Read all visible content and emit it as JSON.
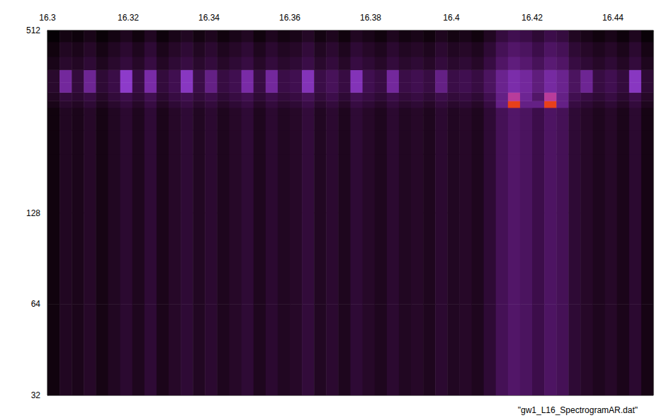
{
  "chart_data": {
    "type": "heatmap",
    "log": "y",
    "grid": false,
    "annotations": [
      "\"gw1_L16_SpectrogramAR.dat\""
    ],
    "xlim": [
      16.3,
      16.45
    ],
    "xticks": [
      16.3,
      16.32,
      16.34,
      16.36,
      16.38,
      16.4,
      16.42,
      16.44
    ],
    "ylim": [
      32,
      512
    ],
    "yticks": [
      32,
      64,
      128,
      512
    ],
    "zlim": [
      0,
      1
    ],
    "x_edges": [
      16.3,
      16.303,
      16.306,
      16.309,
      16.312,
      16.315,
      16.318,
      16.321,
      16.324,
      16.327,
      16.33,
      16.333,
      16.336,
      16.339,
      16.342,
      16.345,
      16.348,
      16.351,
      16.354,
      16.357,
      16.36,
      16.363,
      16.366,
      16.369,
      16.372,
      16.375,
      16.378,
      16.381,
      16.384,
      16.387,
      16.39,
      16.393,
      16.396,
      16.399,
      16.402,
      16.405,
      16.408,
      16.411,
      16.414,
      16.417,
      16.42,
      16.423,
      16.426,
      16.429,
      16.432,
      16.435,
      16.438,
      16.441,
      16.444,
      16.447,
      16.45
    ],
    "y_edges": [
      32,
      64,
      128,
      200,
      240,
      270,
      285,
      300,
      320,
      345,
      380,
      420,
      470,
      512
    ],
    "z": [
      [
        0.12,
        0.22,
        0.18,
        0.25,
        0.15,
        0.22,
        0.28,
        0.2,
        0.3,
        0.18,
        0.25,
        0.3,
        0.22,
        0.28,
        0.2,
        0.25,
        0.3,
        0.2,
        0.28,
        0.22,
        0.25,
        0.32,
        0.22,
        0.28,
        0.2,
        0.3,
        0.25,
        0.2,
        0.28,
        0.22,
        0.25,
        0.2,
        0.28,
        0.22,
        0.25,
        0.2,
        0.3,
        0.42,
        0.48,
        0.45,
        0.38,
        0.46,
        0.42,
        0.3,
        0.25,
        0.2,
        0.25,
        0.18,
        0.28,
        0.15
      ],
      [
        0.12,
        0.22,
        0.18,
        0.25,
        0.15,
        0.22,
        0.28,
        0.2,
        0.3,
        0.18,
        0.25,
        0.3,
        0.22,
        0.28,
        0.2,
        0.25,
        0.3,
        0.2,
        0.28,
        0.22,
        0.25,
        0.32,
        0.22,
        0.28,
        0.2,
        0.3,
        0.25,
        0.2,
        0.28,
        0.22,
        0.25,
        0.2,
        0.28,
        0.22,
        0.25,
        0.2,
        0.3,
        0.42,
        0.48,
        0.45,
        0.38,
        0.46,
        0.42,
        0.3,
        0.25,
        0.2,
        0.25,
        0.18,
        0.28,
        0.15
      ],
      [
        0.12,
        0.22,
        0.18,
        0.25,
        0.15,
        0.22,
        0.28,
        0.2,
        0.3,
        0.18,
        0.25,
        0.3,
        0.22,
        0.28,
        0.2,
        0.25,
        0.3,
        0.2,
        0.28,
        0.22,
        0.25,
        0.32,
        0.22,
        0.28,
        0.2,
        0.3,
        0.25,
        0.2,
        0.28,
        0.22,
        0.25,
        0.2,
        0.28,
        0.22,
        0.25,
        0.2,
        0.3,
        0.42,
        0.48,
        0.45,
        0.38,
        0.46,
        0.42,
        0.3,
        0.25,
        0.2,
        0.25,
        0.18,
        0.28,
        0.15
      ],
      [
        0.12,
        0.22,
        0.18,
        0.25,
        0.15,
        0.22,
        0.28,
        0.2,
        0.3,
        0.18,
        0.25,
        0.3,
        0.22,
        0.28,
        0.2,
        0.25,
        0.3,
        0.2,
        0.28,
        0.22,
        0.25,
        0.32,
        0.22,
        0.28,
        0.2,
        0.3,
        0.25,
        0.2,
        0.28,
        0.22,
        0.25,
        0.2,
        0.28,
        0.22,
        0.25,
        0.2,
        0.3,
        0.42,
        0.48,
        0.45,
        0.38,
        0.46,
        0.42,
        0.3,
        0.25,
        0.2,
        0.25,
        0.18,
        0.28,
        0.15
      ],
      [
        0.12,
        0.22,
        0.18,
        0.25,
        0.15,
        0.22,
        0.28,
        0.2,
        0.3,
        0.18,
        0.25,
        0.3,
        0.22,
        0.28,
        0.2,
        0.25,
        0.3,
        0.2,
        0.28,
        0.22,
        0.25,
        0.32,
        0.22,
        0.28,
        0.2,
        0.3,
        0.25,
        0.2,
        0.28,
        0.22,
        0.25,
        0.2,
        0.28,
        0.22,
        0.25,
        0.2,
        0.3,
        0.42,
        0.48,
        0.45,
        0.38,
        0.46,
        0.42,
        0.3,
        0.25,
        0.2,
        0.25,
        0.18,
        0.28,
        0.15
      ],
      [
        0.12,
        0.22,
        0.18,
        0.25,
        0.15,
        0.22,
        0.28,
        0.2,
        0.3,
        0.18,
        0.25,
        0.3,
        0.22,
        0.28,
        0.2,
        0.25,
        0.3,
        0.2,
        0.28,
        0.22,
        0.25,
        0.32,
        0.22,
        0.28,
        0.2,
        0.3,
        0.25,
        0.2,
        0.28,
        0.22,
        0.25,
        0.2,
        0.28,
        0.22,
        0.25,
        0.2,
        0.3,
        0.42,
        0.48,
        0.45,
        0.38,
        0.46,
        0.42,
        0.3,
        0.25,
        0.2,
        0.25,
        0.18,
        0.28,
        0.15
      ],
      [
        0.17,
        0.27,
        0.23,
        0.3,
        0.2,
        0.27,
        0.33,
        0.25,
        0.35,
        0.23,
        0.3,
        0.35,
        0.27,
        0.33,
        0.25,
        0.3,
        0.35,
        0.25,
        0.33,
        0.27,
        0.3,
        0.37,
        0.27,
        0.33,
        0.25,
        0.35,
        0.3,
        0.25,
        0.33,
        0.27,
        0.3,
        0.25,
        0.33,
        0.27,
        0.3,
        0.25,
        0.35,
        0.55,
        1,
        0.55,
        0.55,
        1,
        0.55,
        0.35,
        0.3,
        0.25,
        0.3,
        0.23,
        0.33,
        0.2
      ],
      [
        0.22,
        0.32,
        0.28,
        0.35,
        0.25,
        0.32,
        0.38,
        0.3,
        0.4,
        0.28,
        0.35,
        0.4,
        0.32,
        0.38,
        0.3,
        0.35,
        0.4,
        0.3,
        0.38,
        0.32,
        0.35,
        0.42,
        0.32,
        0.38,
        0.3,
        0.4,
        0.35,
        0.3,
        0.38,
        0.32,
        0.35,
        0.3,
        0.38,
        0.32,
        0.35,
        0.3,
        0.4,
        0.55,
        0.85,
        0.58,
        0.48,
        0.85,
        0.55,
        0.4,
        0.35,
        0.3,
        0.35,
        0.28,
        0.38,
        0.25
      ],
      [
        0.27,
        0.6,
        0.33,
        0.58,
        0.3,
        0.37,
        0.7,
        0.35,
        0.62,
        0.33,
        0.4,
        0.68,
        0.37,
        0.55,
        0.35,
        0.4,
        0.62,
        0.35,
        0.6,
        0.37,
        0.4,
        0.66,
        0.37,
        0.43,
        0.35,
        0.66,
        0.4,
        0.35,
        0.6,
        0.37,
        0.4,
        0.35,
        0.55,
        0.37,
        0.4,
        0.35,
        0.45,
        0.57,
        0.63,
        0.6,
        0.53,
        0.61,
        0.57,
        0.45,
        0.58,
        0.35,
        0.4,
        0.33,
        0.68,
        0.3
      ],
      [
        0.27,
        0.6,
        0.33,
        0.58,
        0.3,
        0.37,
        0.7,
        0.35,
        0.62,
        0.33,
        0.4,
        0.68,
        0.37,
        0.55,
        0.35,
        0.4,
        0.62,
        0.35,
        0.6,
        0.37,
        0.4,
        0.66,
        0.37,
        0.43,
        0.35,
        0.66,
        0.4,
        0.35,
        0.6,
        0.37,
        0.4,
        0.35,
        0.55,
        0.37,
        0.4,
        0.35,
        0.45,
        0.57,
        0.63,
        0.6,
        0.53,
        0.61,
        0.57,
        0.45,
        0.58,
        0.35,
        0.4,
        0.33,
        0.68,
        0.3
      ],
      [
        0.17,
        0.27,
        0.23,
        0.3,
        0.2,
        0.27,
        0.33,
        0.25,
        0.35,
        0.23,
        0.3,
        0.35,
        0.27,
        0.33,
        0.25,
        0.3,
        0.35,
        0.25,
        0.33,
        0.27,
        0.3,
        0.37,
        0.27,
        0.33,
        0.25,
        0.35,
        0.3,
        0.25,
        0.33,
        0.27,
        0.3,
        0.25,
        0.33,
        0.27,
        0.3,
        0.25,
        0.35,
        0.47,
        0.53,
        0.5,
        0.43,
        0.51,
        0.47,
        0.35,
        0.3,
        0.25,
        0.3,
        0.23,
        0.33,
        0.2
      ],
      [
        0.12,
        0.22,
        0.18,
        0.25,
        0.15,
        0.22,
        0.28,
        0.2,
        0.3,
        0.18,
        0.25,
        0.3,
        0.22,
        0.28,
        0.2,
        0.25,
        0.3,
        0.2,
        0.28,
        0.22,
        0.25,
        0.32,
        0.22,
        0.28,
        0.2,
        0.3,
        0.25,
        0.2,
        0.28,
        0.22,
        0.25,
        0.2,
        0.28,
        0.22,
        0.25,
        0.2,
        0.3,
        0.42,
        0.48,
        0.45,
        0.38,
        0.46,
        0.42,
        0.3,
        0.25,
        0.2,
        0.25,
        0.18,
        0.28,
        0.15
      ],
      [
        0.04,
        0.14,
        0.1,
        0.17,
        0.07,
        0.14,
        0.2,
        0.12,
        0.22,
        0.1,
        0.17,
        0.22,
        0.14,
        0.2,
        0.12,
        0.17,
        0.22,
        0.12,
        0.2,
        0.14,
        0.17,
        0.24,
        0.14,
        0.2,
        0.12,
        0.22,
        0.17,
        0.12,
        0.2,
        0.14,
        0.17,
        0.12,
        0.2,
        0.14,
        0.17,
        0.12,
        0.22,
        0.34,
        0.4,
        0.37,
        0.3,
        0.38,
        0.34,
        0.22,
        0.17,
        0.12,
        0.17,
        0.1,
        0.2,
        0.07
      ]
    ]
  }
}
